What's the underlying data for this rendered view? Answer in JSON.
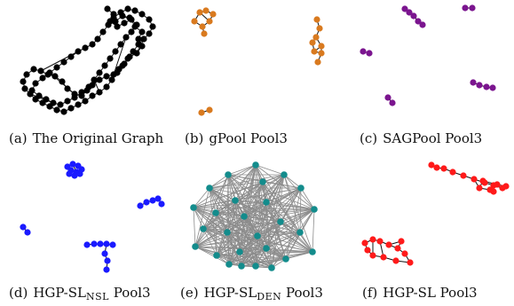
{
  "panels": [
    {
      "tag": "(a)",
      "name": "The Original Graph",
      "name_sub": "",
      "name_suffix": "",
      "color": "#000000"
    },
    {
      "tag": "(b)",
      "name": "gPool Pool3",
      "name_sub": "",
      "name_suffix": "",
      "color": "#d97a1f"
    },
    {
      "tag": "(c)",
      "name": "SAGPool Pool3",
      "name_sub": "",
      "name_suffix": "",
      "color": "#7b158f"
    },
    {
      "tag": "(d)",
      "name": "HGP-SL",
      "name_sub": "NSL",
      "name_suffix": " Pool3",
      "color": "#1a1aff"
    },
    {
      "tag": "(e)",
      "name": "HGP-SL",
      "name_sub": "DEN",
      "name_suffix": " Pool3",
      "color": "#138c8c"
    },
    {
      "tag": "(f)",
      "name": "HGP-SL Pool3",
      "name_sub": "",
      "name_suffix": "",
      "color": "#ff1a1a"
    }
  ],
  "colors": {
    "dense_edge": "#8c8c8c",
    "edge": "#111111"
  }
}
